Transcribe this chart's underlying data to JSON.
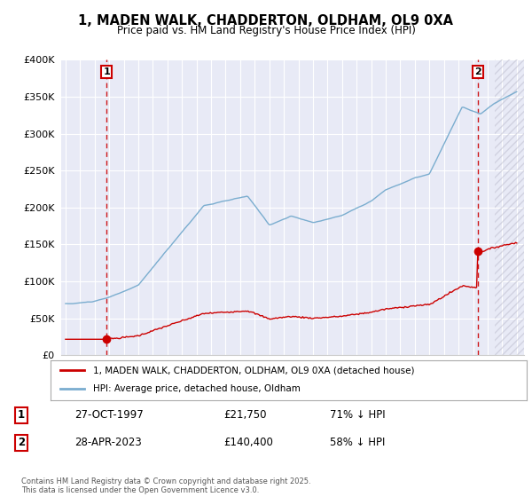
{
  "title": "1, MADEN WALK, CHADDERTON, OLDHAM, OL9 0XA",
  "subtitle": "Price paid vs. HM Land Registry's House Price Index (HPI)",
  "ylim": [
    0,
    400000
  ],
  "xlim_start": 1994.7,
  "xlim_end": 2026.5,
  "background_color": "#ffffff",
  "plot_bg_color": "#e8eaf6",
  "grid_color": "#ffffff",
  "legend_label_red": "1, MADEN WALK, CHADDERTON, OLDHAM, OL9 0XA (detached house)",
  "legend_label_blue": "HPI: Average price, detached house, Oldham",
  "sale1_date": 1997.82,
  "sale1_price": 21750,
  "sale2_date": 2023.32,
  "sale2_price": 140400,
  "annotation1_date": "27-OCT-1997",
  "annotation1_price": "£21,750",
  "annotation1_hpi": "71% ↓ HPI",
  "annotation2_date": "28-APR-2023",
  "annotation2_price": "£140,400",
  "annotation2_hpi": "58% ↓ HPI",
  "footer": "Contains HM Land Registry data © Crown copyright and database right 2025.\nThis data is licensed under the Open Government Licence v3.0.",
  "red_color": "#cc0000",
  "blue_color": "#7aadcf",
  "dashed_red": "#cc0000",
  "ytick_labels": [
    "£0",
    "£50K",
    "£100K",
    "£150K",
    "£200K",
    "£250K",
    "£300K",
    "£350K",
    "£400K"
  ],
  "ytick_values": [
    0,
    50000,
    100000,
    150000,
    200000,
    250000,
    300000,
    350000,
    400000
  ]
}
